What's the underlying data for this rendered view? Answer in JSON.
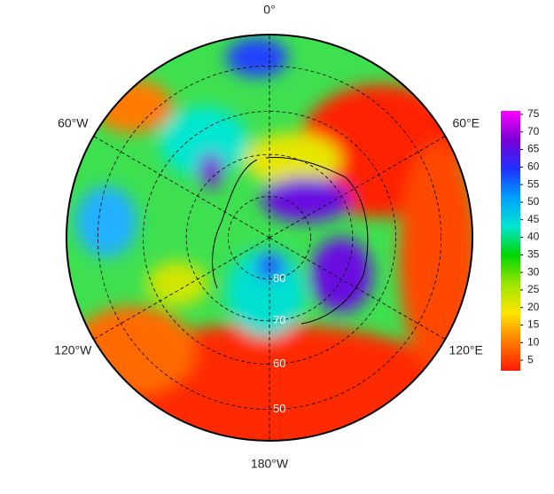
{
  "chart_data": {
    "type": "polar-heatmap",
    "lon_ticks": [
      {
        "value": 0,
        "label": "0°"
      },
      {
        "value": 60,
        "label": "60°E"
      },
      {
        "value": 120,
        "label": "120°E"
      },
      {
        "value": 180,
        "label": "180°W"
      },
      {
        "value": -120,
        "label": "120°W"
      },
      {
        "value": -60,
        "label": "60°W"
      }
    ],
    "lat_ticks": [
      80,
      70,
      60,
      50
    ],
    "colorbar": {
      "clim": [
        2,
        76
      ],
      "ticks": [
        5,
        10,
        15,
        20,
        25,
        30,
        35,
        40,
        45,
        50,
        55,
        60,
        65,
        70,
        75
      ],
      "colors": [
        "#ff1a00",
        "#ff7a00",
        "#ffe600",
        "#9ae600",
        "#00d600",
        "#00e6d0",
        "#00a0ff",
        "#2030ff",
        "#7a00d6",
        "#ff00ff"
      ]
    }
  }
}
